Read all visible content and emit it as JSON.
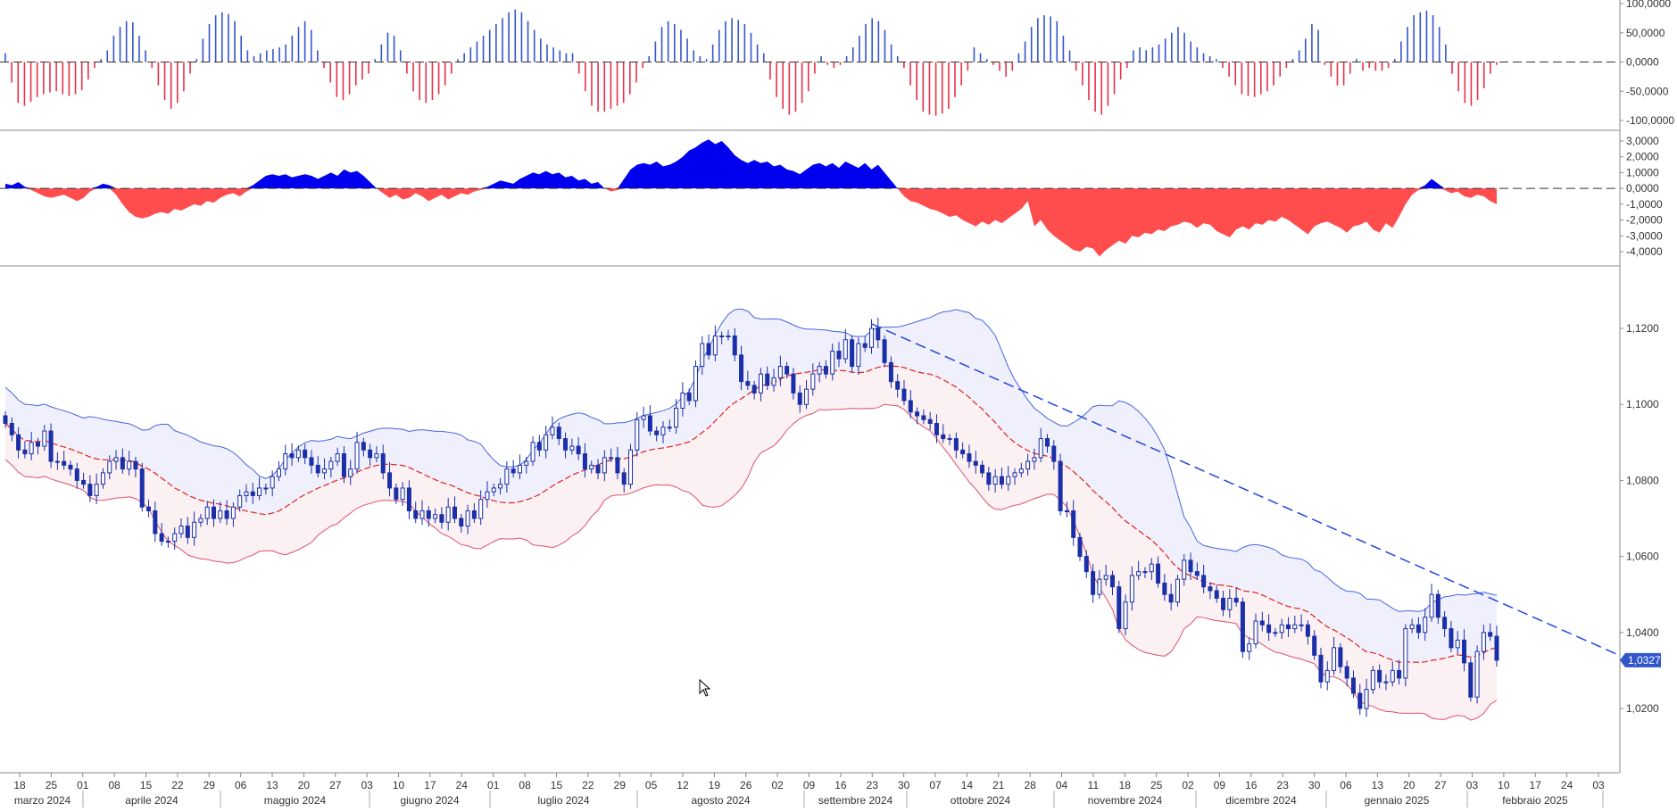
{
  "chart_data": [
    {
      "panel": "histogram-oscillator",
      "type": "bar",
      "y_ticks": [
        "100,0000",
        "50,0000",
        "0,0000",
        "-50,0000",
        "-100,0000"
      ],
      "ylim": [
        -100,
        100
      ],
      "zero_line": "dashed",
      "colors": {
        "positive": "#3355cc",
        "negative": "#e8304a"
      },
      "values": [
        15,
        -35,
        -70,
        -75,
        -68,
        -60,
        -55,
        -52,
        -50,
        -55,
        -58,
        -55,
        -48,
        -30,
        -10,
        5,
        20,
        45,
        60,
        70,
        68,
        45,
        20,
        -10,
        -40,
        -65,
        -80,
        -70,
        -50,
        -20,
        5,
        40,
        65,
        80,
        85,
        82,
        70,
        45,
        20,
        10,
        15,
        20,
        22,
        25,
        30,
        45,
        60,
        70,
        55,
        20,
        -10,
        -35,
        -60,
        -65,
        -55,
        -40,
        -30,
        -20,
        5,
        30,
        50,
        45,
        20,
        -20,
        -50,
        -65,
        -70,
        -65,
        -55,
        -40,
        -20,
        5,
        15,
        25,
        35,
        45,
        55,
        65,
        75,
        85,
        90,
        85,
        70,
        55,
        40,
        30,
        25,
        20,
        15,
        15,
        -20,
        -50,
        -75,
        -85,
        -85,
        -80,
        -75,
        -70,
        -55,
        -35,
        -10,
        10,
        35,
        60,
        70,
        65,
        55,
        40,
        20,
        10,
        5,
        30,
        55,
        70,
        75,
        72,
        65,
        50,
        30,
        15,
        -30,
        -60,
        -80,
        -90,
        -85,
        -70,
        -50,
        -20,
        10,
        -5,
        -10,
        -5,
        10,
        25,
        45,
        65,
        75,
        70,
        55,
        30,
        10,
        -10,
        -40,
        -65,
        -85,
        -90,
        -92,
        -88,
        -80,
        -60,
        -40,
        -15,
        25,
        15,
        5,
        -5,
        -15,
        -25,
        -15,
        15,
        35,
        60,
        75,
        80,
        78,
        70,
        45,
        20,
        -15,
        -40,
        -65,
        -85,
        -90,
        -75,
        -55,
        -30,
        -10,
        20,
        25,
        20,
        25,
        30,
        40,
        50,
        60,
        50,
        35,
        25,
        15,
        10,
        5,
        -10,
        -25,
        -40,
        -55,
        -58,
        -60,
        -55,
        -50,
        -40,
        -25,
        -10,
        5,
        20,
        40,
        65,
        55,
        -5,
        -25,
        -40,
        -40,
        -20,
        5,
        -15,
        -10,
        -15,
        -15,
        -10,
        5,
        35,
        60,
        80,
        85,
        88,
        80,
        60,
        30,
        -20,
        -50,
        -70,
        -75,
        -65,
        -45,
        -20,
        -5
      ]
    },
    {
      "panel": "area-oscillator",
      "type": "area",
      "y_ticks": [
        "3,0000",
        "2,0000",
        "1,0000",
        "0,0000",
        "-1,0000",
        "-2,0000",
        "-3,0000",
        "-4,0000"
      ],
      "ylim": [
        -4.5,
        3.5
      ],
      "zero_line": "dashed",
      "colors": {
        "positive": "#0000ee",
        "negative": "#ff4d4d"
      },
      "values": [
        0.3,
        0.2,
        0.4,
        0.1,
        -0.1,
        -0.3,
        -0.5,
        -0.6,
        -0.5,
        -0.4,
        -0.6,
        -0.8,
        -0.6,
        -0.2,
        0.1,
        0.3,
        0.2,
        -0.4,
        -1.0,
        -1.5,
        -1.8,
        -1.9,
        -1.8,
        -1.6,
        -1.5,
        -1.6,
        -1.3,
        -1.4,
        -1.2,
        -1.0,
        -1.1,
        -0.8,
        -0.9,
        -0.6,
        -0.4,
        -0.3,
        -0.5,
        -0.2,
        0.2,
        0.5,
        0.8,
        0.9,
        0.8,
        0.9,
        0.7,
        0.8,
        0.9,
        0.8,
        0.6,
        0.8,
        1.0,
        0.8,
        1.2,
        1.0,
        1.1,
        0.8,
        0.4,
        0.0,
        -0.3,
        -0.6,
        -0.4,
        -0.7,
        -0.6,
        -0.3,
        -0.5,
        -0.8,
        -0.6,
        -0.4,
        -0.7,
        -0.5,
        -0.3,
        -0.4,
        -0.2,
        -0.1,
        0.1,
        0.3,
        0.5,
        0.4,
        0.3,
        0.6,
        0.8,
        1.0,
        0.9,
        1.1,
        0.9,
        1.0,
        0.7,
        0.8,
        0.5,
        0.6,
        0.3,
        0.4,
        0.0,
        -0.2,
        -0.1,
        0.6,
        1.2,
        1.5,
        1.6,
        1.5,
        1.7,
        1.4,
        1.5,
        1.7,
        2.0,
        2.4,
        2.6,
        2.9,
        3.1,
        2.8,
        3.0,
        2.6,
        2.1,
        1.8,
        1.6,
        1.8,
        1.6,
        1.7,
        1.4,
        1.5,
        1.2,
        1.1,
        0.9,
        1.2,
        1.5,
        1.6,
        1.4,
        1.6,
        1.3,
        1.7,
        1.5,
        1.3,
        1.6,
        1.2,
        1.5,
        1.0,
        0.5,
        0.0,
        -0.5,
        -0.8,
        -0.9,
        -1.1,
        -1.3,
        -1.4,
        -1.6,
        -1.8,
        -1.7,
        -2.0,
        -2.2,
        -2.4,
        -2.1,
        -2.3,
        -2.0,
        -2.2,
        -1.9,
        -1.6,
        -1.3,
        -0.8,
        -2.4,
        -2.0,
        -2.6,
        -3.0,
        -3.3,
        -3.6,
        -3.9,
        -4.0,
        -3.7,
        -3.8,
        -4.3,
        -3.9,
        -3.6,
        -3.3,
        -3.5,
        -3.0,
        -3.1,
        -2.8,
        -2.9,
        -2.6,
        -2.7,
        -2.4,
        -2.3,
        -2.1,
        -2.2,
        -2.5,
        -2.2,
        -2.3,
        -2.7,
        -2.9,
        -3.1,
        -2.6,
        -2.4,
        -2.6,
        -2.2,
        -2.3,
        -2.0,
        -2.1,
        -1.8,
        -2.0,
        -2.3,
        -2.6,
        -2.9,
        -2.4,
        -2.2,
        -2.1,
        -2.3,
        -2.5,
        -2.8,
        -2.4,
        -2.3,
        -2.1,
        -2.6,
        -2.8,
        -2.2,
        -2.5,
        -1.8,
        -1.0,
        -0.4,
        -0.1,
        0.2,
        0.6,
        0.3,
        -0.1,
        -0.3,
        -0.2,
        -0.5,
        -0.6,
        -0.4,
        -0.5,
        -0.8,
        -1.0
      ]
    },
    {
      "panel": "price",
      "type": "candlestick",
      "y_ticks": [
        "1,1200",
        "1,1000",
        "1,0800",
        "1,0600",
        "1,0400",
        "1,0200"
      ],
      "ylim": [
        1.0125,
        1.1333
      ],
      "last_price_label": "1,0327",
      "colors": {
        "candle": "#1a2fa8",
        "upper_band": "#4466dd",
        "lower_band": "#e05070",
        "middle_line": "#dd2222",
        "upper_fill": "#f0f0fc",
        "lower_fill": "#fbf0f2",
        "trendline": "#2244dd"
      },
      "closes": [
        1.095,
        1.092,
        1.088,
        1.087,
        1.09,
        1.089,
        1.093,
        1.085,
        1.085,
        1.084,
        1.083,
        1.08,
        1.079,
        1.076,
        1.079,
        1.082,
        1.085,
        1.086,
        1.083,
        1.085,
        1.083,
        1.073,
        1.072,
        1.066,
        1.064,
        1.064,
        1.066,
        1.068,
        1.065,
        1.069,
        1.07,
        1.073,
        1.07,
        1.072,
        1.07,
        1.073,
        1.076,
        1.077,
        1.076,
        1.078,
        1.078,
        1.081,
        1.083,
        1.087,
        1.086,
        1.088,
        1.086,
        1.084,
        1.082,
        1.083,
        1.085,
        1.087,
        1.081,
        1.083,
        1.09,
        1.088,
        1.086,
        1.087,
        1.082,
        1.078,
        1.075,
        1.078,
        1.072,
        1.07,
        1.072,
        1.07,
        1.071,
        1.069,
        1.073,
        1.07,
        1.068,
        1.072,
        1.07,
        1.075,
        1.077,
        1.078,
        1.079,
        1.083,
        1.082,
        1.084,
        1.085,
        1.09,
        1.088,
        1.092,
        1.094,
        1.091,
        1.088,
        1.089,
        1.087,
        1.083,
        1.084,
        1.082,
        1.086,
        1.086,
        1.082,
        1.079,
        1.088,
        1.096,
        1.097,
        1.093,
        1.092,
        1.094,
        1.094,
        1.099,
        1.103,
        1.101,
        1.11,
        1.116,
        1.113,
        1.118,
        1.118,
        1.118,
        1.113,
        1.106,
        1.105,
        1.103,
        1.108,
        1.105,
        1.107,
        1.11,
        1.108,
        1.103,
        1.1,
        1.104,
        1.108,
        1.11,
        1.108,
        1.114,
        1.112,
        1.117,
        1.11,
        1.116,
        1.115,
        1.12,
        1.117,
        1.111,
        1.106,
        1.104,
        1.101,
        1.098,
        1.097,
        1.096,
        1.095,
        1.092,
        1.091,
        1.091,
        1.088,
        1.087,
        1.085,
        1.084,
        1.082,
        1.079,
        1.081,
        1.079,
        1.081,
        1.082,
        1.083,
        1.085,
        1.086,
        1.091,
        1.089,
        1.085,
        1.072,
        1.072,
        1.065,
        1.06,
        1.056,
        1.05,
        1.054,
        1.055,
        1.052,
        1.041,
        1.048,
        1.055,
        1.056,
        1.056,
        1.058,
        1.053,
        1.05,
        1.048,
        1.054,
        1.059,
        1.056,
        1.055,
        1.052,
        1.051,
        1.049,
        1.046,
        1.049,
        1.048,
        1.035,
        1.037,
        1.043,
        1.042,
        1.04,
        1.04,
        1.042,
        1.041,
        1.042,
        1.042,
        1.039,
        1.034,
        1.027,
        1.03,
        1.036,
        1.031,
        1.028,
        1.024,
        1.02,
        1.025,
        1.03,
        1.027,
        1.027,
        1.03,
        1.028,
        1.041,
        1.042,
        1.04,
        1.044,
        1.05,
        1.044,
        1.041,
        1.036,
        1.038,
        1.032,
        1.023,
        1.035,
        1.04,
        1.039,
        1.0327
      ]
    }
  ],
  "x_axis": {
    "day_ticks": [
      "18",
      "25",
      "01",
      "08",
      "15",
      "22",
      "29",
      "06",
      "13",
      "20",
      "27",
      "03",
      "10",
      "17",
      "24",
      "01",
      "08",
      "15",
      "22",
      "29",
      "05",
      "12",
      "19",
      "26",
      "02",
      "09",
      "16",
      "23",
      "30",
      "07",
      "14",
      "21",
      "28",
      "04",
      "11",
      "18",
      "25",
      "02",
      "09",
      "16",
      "23",
      "30",
      "06",
      "13",
      "20",
      "27",
      "03",
      "10",
      "17",
      "24",
      "03"
    ],
    "months": [
      "marzo 2024",
      "aprile 2024",
      "maggio 2024",
      "giugno 2024",
      "luglio 2024",
      "agosto 2024",
      "settembre 2024",
      "ottobre 2024",
      "novembre 2024",
      "dicembre 2024",
      "gennaio 2025",
      "febbraio 2025"
    ]
  }
}
